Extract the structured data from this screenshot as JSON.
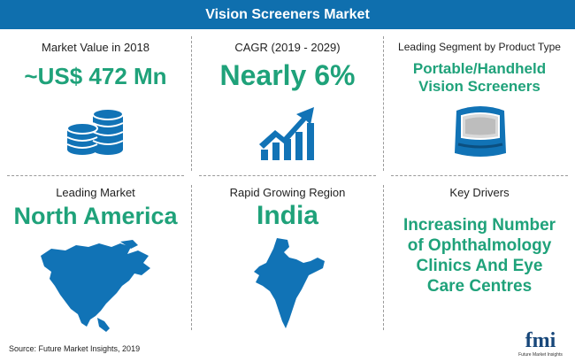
{
  "header": {
    "title": "Vision Screeners Market"
  },
  "cells": [
    {
      "label": "Market Value in 2018",
      "value": "~US$ 472 Mn",
      "icon": "coins-icon"
    },
    {
      "label": "CAGR (2019 - 2029)",
      "value": "Nearly 6%",
      "icon": "growth-chart-icon"
    },
    {
      "label": "Leading Segment by Product Type",
      "value_lines": [
        "Portable/Handheld",
        "Vision Screeners"
      ],
      "icon": "handheld-screener-icon"
    },
    {
      "label": "Leading Market",
      "value": "North America",
      "icon": "north-america-map-icon"
    },
    {
      "label": "Rapid Growing Region",
      "value": "India",
      "icon": "india-map-icon"
    },
    {
      "label": "Key Drivers",
      "value_lines": [
        "Increasing Number",
        "of Ophthalmology",
        "Clinics And Eye",
        "Care Centres"
      ]
    }
  ],
  "footer": {
    "source": "Source: Future Market Insights, 2019",
    "logo": "fmi",
    "logo_sub": "Future Market Insights"
  },
  "colors": {
    "header": "#0f6fae",
    "accent": "#1fa27a",
    "icon": "#1173b6"
  }
}
